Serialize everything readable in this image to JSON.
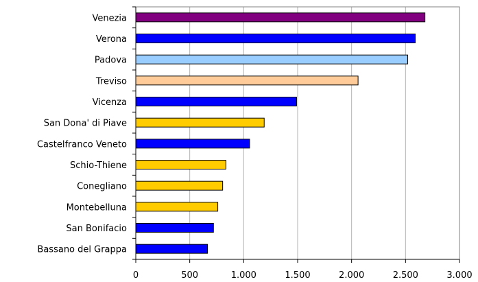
{
  "chart_data": {
    "type": "bar",
    "orientation": "horizontal",
    "categories": [
      "Venezia",
      "Verona",
      "Padova",
      "Treviso",
      "Vicenza",
      "San Dona' di Piave",
      "Castelfranco Veneto",
      "Schio-Thiene",
      "Conegliano",
      "Montebelluna",
      "San Bonifacio",
      "Bassano del Grappa"
    ],
    "values": [
      2680,
      2590,
      2520,
      2060,
      1490,
      1190,
      1055,
      835,
      805,
      760,
      720,
      665
    ],
    "colors": [
      "#800080",
      "#0000ff",
      "#99ccff",
      "#ffcc99",
      "#0000ff",
      "#ffcc00",
      "#0000ff",
      "#ffcc00",
      "#ffcc00",
      "#ffcc00",
      "#0000ff",
      "#0000ff"
    ],
    "xlim": [
      0,
      3000
    ],
    "xticks": [
      0,
      500,
      1000,
      1500,
      2000,
      2500,
      3000
    ],
    "xtick_labels": [
      "0",
      "500",
      "1.000",
      "1.500",
      "2.000",
      "2.500",
      "3.000"
    ],
    "grid": true,
    "title": "",
    "xlabel": "",
    "ylabel": ""
  }
}
